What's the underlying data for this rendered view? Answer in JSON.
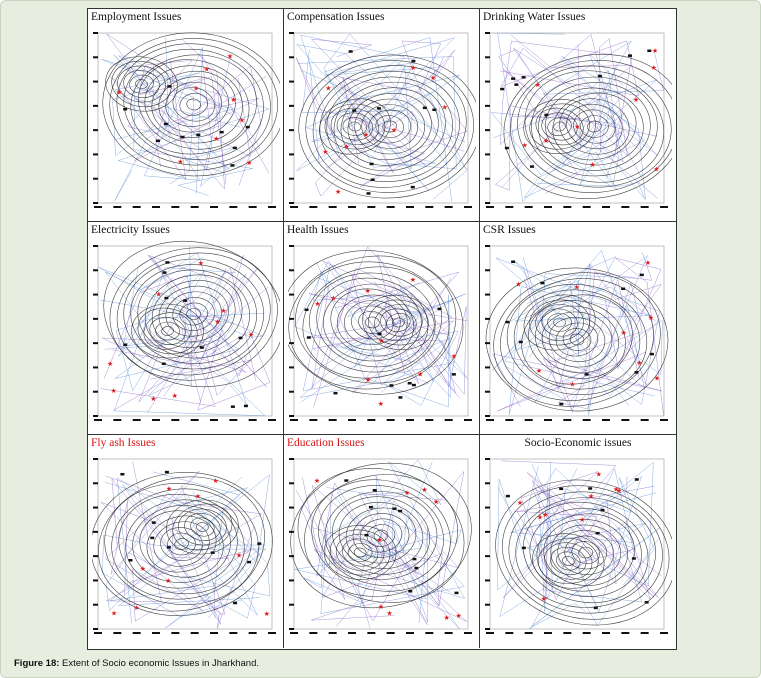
{
  "panels": [
    {
      "title": "Employment Issues",
      "title_color": "#111111"
    },
    {
      "title": "Compensation Issues",
      "title_color": "#111111"
    },
    {
      "title": "Drinking Water Issues",
      "title_color": "#111111"
    },
    {
      "title": "Electricity Issues",
      "title_color": "#111111"
    },
    {
      "title": "Health Issues",
      "title_color": "#111111"
    },
    {
      "title": "CSR Issues",
      "title_color": "#111111"
    },
    {
      "title": "Fly ash Issues",
      "title_color": "#d61414"
    },
    {
      "title": "Education Issues",
      "title_color": "#d61414"
    },
    {
      "title": "Socio-Economic issues",
      "title_color": "#111111"
    }
  ],
  "caption": {
    "label": "Figure 18:",
    "text": " Extent of Socio economic Issues in Jharkhand."
  },
  "colors": {
    "frame_bg": "#e7eedf",
    "contour": "#222222",
    "rivers": "#5b8bd6",
    "boundaries": "#8a5fc7",
    "stars": "#e01b1b"
  }
}
